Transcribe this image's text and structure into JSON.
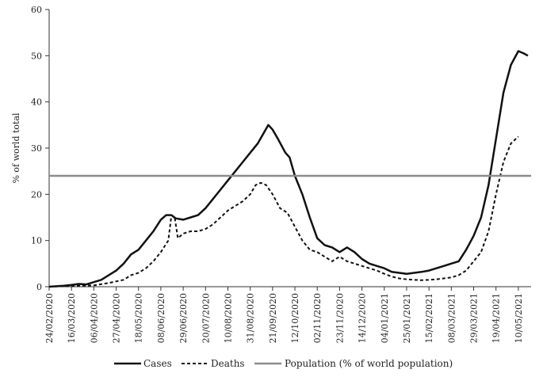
{
  "chart_data": {
    "type": "line",
    "title": "",
    "xlabel": "",
    "ylabel": "% of world total",
    "ylim": [
      0,
      60
    ],
    "yticks": [
      0,
      10,
      20,
      30,
      40,
      50,
      60
    ],
    "grid": false,
    "legend_position": "bottom",
    "x_tick_labels": [
      "24/02/2020",
      "16/03/2020",
      "06/04/2020",
      "27/04/2020",
      "18/05/2020",
      "08/06/2020",
      "29/06/2020",
      "20/07/2020",
      "10/08/2020",
      "31/08/2020",
      "21/09/2020",
      "12/10/2020",
      "02/11/2020",
      "23/11/2020",
      "14/12/2020",
      "04/01/2021",
      "25/01/2021",
      "15/02/2021",
      "08/03/2021",
      "29/03/2021",
      "19/04/2021",
      "10/05/2021"
    ],
    "x_range_days": [
      0,
      453
    ],
    "series": [
      {
        "name": "Cases",
        "style": "solid",
        "color": "#111111",
        "points": [
          [
            0,
            0
          ],
          [
            7,
            0.1
          ],
          [
            14,
            0.2
          ],
          [
            21,
            0.4
          ],
          [
            28,
            0.6
          ],
          [
            35,
            0.5
          ],
          [
            42,
            1
          ],
          [
            49,
            1.5
          ],
          [
            56,
            2.5
          ],
          [
            63,
            3.5
          ],
          [
            70,
            5
          ],
          [
            77,
            7
          ],
          [
            84,
            8
          ],
          [
            91,
            10
          ],
          [
            98,
            12
          ],
          [
            105,
            14.5
          ],
          [
            110,
            15.5
          ],
          [
            115,
            15.5
          ],
          [
            119,
            14.8
          ],
          [
            126,
            14.5
          ],
          [
            133,
            15
          ],
          [
            140,
            15.5
          ],
          [
            147,
            17
          ],
          [
            154,
            19
          ],
          [
            161,
            21
          ],
          [
            168,
            23
          ],
          [
            175,
            25
          ],
          [
            182,
            27
          ],
          [
            189,
            29
          ],
          [
            196,
            31
          ],
          [
            201,
            33
          ],
          [
            206,
            35
          ],
          [
            210,
            34
          ],
          [
            215,
            32
          ],
          [
            222,
            29
          ],
          [
            226,
            28
          ],
          [
            231,
            24
          ],
          [
            238,
            20
          ],
          [
            245,
            15
          ],
          [
            252,
            10.5
          ],
          [
            259,
            9
          ],
          [
            266,
            8.5
          ],
          [
            273,
            7.5
          ],
          [
            280,
            8.5
          ],
          [
            287,
            7.5
          ],
          [
            294,
            6
          ],
          [
            301,
            5
          ],
          [
            308,
            4.5
          ],
          [
            315,
            4
          ],
          [
            322,
            3.2
          ],
          [
            329,
            3
          ],
          [
            336,
            2.8
          ],
          [
            343,
            3
          ],
          [
            350,
            3.2
          ],
          [
            357,
            3.5
          ],
          [
            364,
            4
          ],
          [
            371,
            4.5
          ],
          [
            378,
            5
          ],
          [
            385,
            5.5
          ],
          [
            392,
            8
          ],
          [
            399,
            11
          ],
          [
            406,
            15
          ],
          [
            413,
            22
          ],
          [
            420,
            32
          ],
          [
            427,
            42
          ],
          [
            434,
            48
          ],
          [
            441,
            51
          ],
          [
            446,
            50.5
          ],
          [
            450,
            50
          ]
        ]
      },
      {
        "name": "Deaths",
        "style": "dashed",
        "color": "#111111",
        "points": [
          [
            0,
            0
          ],
          [
            14,
            0.1
          ],
          [
            28,
            0.2
          ],
          [
            42,
            0.3
          ],
          [
            56,
            0.8
          ],
          [
            70,
            1.5
          ],
          [
            77,
            2.5
          ],
          [
            84,
            3
          ],
          [
            91,
            4
          ],
          [
            98,
            5.5
          ],
          [
            105,
            7.5
          ],
          [
            112,
            10
          ],
          [
            115,
            15.5
          ],
          [
            118,
            15
          ],
          [
            121,
            10.5
          ],
          [
            126,
            11.5
          ],
          [
            133,
            12
          ],
          [
            140,
            12
          ],
          [
            147,
            12.5
          ],
          [
            154,
            13.5
          ],
          [
            161,
            15
          ],
          [
            168,
            16.5
          ],
          [
            175,
            17.5
          ],
          [
            182,
            18.5
          ],
          [
            189,
            20
          ],
          [
            194,
            22
          ],
          [
            199,
            22.5
          ],
          [
            204,
            22
          ],
          [
            210,
            20
          ],
          [
            217,
            17
          ],
          [
            224,
            16
          ],
          [
            231,
            13
          ],
          [
            238,
            10
          ],
          [
            245,
            8
          ],
          [
            252,
            7.5
          ],
          [
            259,
            6.5
          ],
          [
            266,
            5.5
          ],
          [
            273,
            6.5
          ],
          [
            280,
            5.5
          ],
          [
            287,
            5
          ],
          [
            294,
            4.5
          ],
          [
            301,
            4
          ],
          [
            308,
            3.5
          ],
          [
            315,
            2.8
          ],
          [
            322,
            2.2
          ],
          [
            329,
            1.8
          ],
          [
            336,
            1.6
          ],
          [
            343,
            1.5
          ],
          [
            350,
            1.4
          ],
          [
            357,
            1.5
          ],
          [
            364,
            1.6
          ],
          [
            371,
            1.8
          ],
          [
            378,
            2
          ],
          [
            385,
            2.5
          ],
          [
            392,
            3.5
          ],
          [
            399,
            5.5
          ],
          [
            406,
            7.5
          ],
          [
            413,
            12
          ],
          [
            420,
            20
          ],
          [
            427,
            27
          ],
          [
            434,
            31
          ],
          [
            441,
            32.5
          ]
        ]
      },
      {
        "name": "Population (% of world population)",
        "style": "solid",
        "color": "#8c8c8c",
        "value": 24
      }
    ]
  }
}
